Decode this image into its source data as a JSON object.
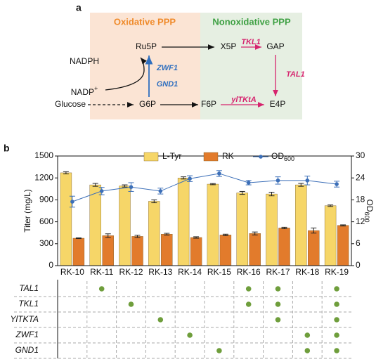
{
  "panel_a": {
    "label": "a",
    "oxidative_title": "Oxidative PPP",
    "nonoxidative_title": "Nonoxidative PPP",
    "nodes": [
      "Ru5P",
      "X5P",
      "GAP",
      "NADPH",
      "G6P",
      "F6P",
      "E4P",
      "Glucose"
    ],
    "cofactor": {
      "text": "NADP",
      "sup": "+"
    },
    "enzymes": [
      "TKL1",
      "TAL1",
      "ZWF1",
      "GND1",
      "ylTKtA"
    ]
  },
  "chart_data": {
    "type": "bar",
    "panel_label": "b",
    "categories": [
      "RK-10",
      "RK-11",
      "RK-12",
      "RK-13",
      "RK-14",
      "RK-15",
      "RK-16",
      "RK-17",
      "RK-18",
      "RK-19"
    ],
    "series": [
      {
        "name": "L-Tyr",
        "type": "bar",
        "color": "#f6d668",
        "values": [
          1270,
          1105,
          1090,
          880,
          1200,
          1115,
          995,
          980,
          1105,
          820
        ],
        "errors": [
          15,
          20,
          15,
          20,
          15,
          8,
          20,
          25,
          20,
          10
        ]
      },
      {
        "name": "RK",
        "type": "bar",
        "color": "#e27b2c",
        "values": [
          375,
          410,
          400,
          430,
          385,
          420,
          440,
          515,
          480,
          550
        ],
        "errors": [
          5,
          25,
          15,
          12,
          10,
          10,
          20,
          10,
          35,
          8
        ]
      },
      {
        "name": "OD",
        "name_sub": "600",
        "type": "line",
        "axis": "y2",
        "color": "#3c6fb8",
        "values": [
          17.5,
          20.4,
          21.5,
          20.4,
          23.8,
          25.2,
          22.7,
          23.3,
          23.3,
          22.3
        ],
        "errors": [
          1.5,
          1,
          1.2,
          0.8,
          0.8,
          0.8,
          0.6,
          1,
          1.2,
          0.8
        ]
      }
    ],
    "ylabel": "Titer (mg/L)",
    "y2label": {
      "text": "OD",
      "sub": "600"
    },
    "ylim": [
      0,
      1500
    ],
    "yticks": [
      0,
      300,
      600,
      900,
      1200,
      1500
    ],
    "y2lim": [
      0,
      30
    ],
    "y2ticks": [
      0,
      6,
      12,
      18,
      24,
      30
    ],
    "legend": "top"
  },
  "matrix": {
    "color": "#6f9e3c",
    "rows": [
      {
        "label": "TAL1",
        "marks": [
          false,
          true,
          false,
          false,
          false,
          false,
          true,
          true,
          false,
          true
        ]
      },
      {
        "label": "TKL1",
        "marks": [
          false,
          false,
          true,
          false,
          false,
          false,
          true,
          true,
          false,
          true
        ]
      },
      {
        "label": "YlTKTA",
        "marks": [
          false,
          false,
          false,
          true,
          false,
          false,
          false,
          true,
          false,
          true
        ]
      },
      {
        "label": "ZWF1",
        "marks": [
          false,
          false,
          false,
          false,
          true,
          false,
          false,
          false,
          true,
          true
        ]
      },
      {
        "label": "GND1",
        "marks": [
          false,
          false,
          false,
          false,
          false,
          true,
          false,
          false,
          true,
          true
        ]
      }
    ]
  }
}
